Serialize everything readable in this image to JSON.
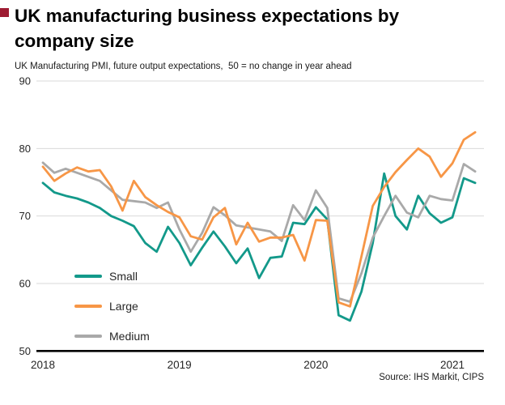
{
  "header": {
    "title": "UK manufacturing business expectations by company size",
    "subtitle": "UK Manufacturing PMI, future output expectations,  50 = no change in year ahead",
    "accent_color": "#9e1b32"
  },
  "source": "Source: IHS Markit, CIPS",
  "legend": {
    "items": [
      {
        "label": "Small",
        "color": "#13998a"
      },
      {
        "label": "Large",
        "color": "#f79646"
      },
      {
        "label": "Medium",
        "color": "#a9a9a9"
      }
    ]
  },
  "chart_data": {
    "type": "line",
    "title": "UK manufacturing business expectations by company size",
    "subtitle": "UK Manufacturing PMI, future output expectations, 50 = no change in year ahead",
    "x": [
      "2018-01",
      "2018-02",
      "2018-03",
      "2018-04",
      "2018-05",
      "2018-06",
      "2018-07",
      "2018-08",
      "2018-09",
      "2018-10",
      "2018-11",
      "2018-12",
      "2019-01",
      "2019-02",
      "2019-03",
      "2019-04",
      "2019-05",
      "2019-06",
      "2019-07",
      "2019-08",
      "2019-09",
      "2019-10",
      "2019-11",
      "2019-12",
      "2020-01",
      "2020-02",
      "2020-03",
      "2020-04",
      "2020-05",
      "2020-06",
      "2020-07",
      "2020-08",
      "2020-09",
      "2020-10",
      "2020-11",
      "2020-12",
      "2021-01",
      "2021-02",
      "2021-03"
    ],
    "x_tick_labels": [
      "2018",
      "2019",
      "2020",
      "2021"
    ],
    "x_tick_indices": [
      0,
      12,
      24,
      36
    ],
    "y_ticks": [
      90,
      80,
      70,
      60,
      50
    ],
    "ylim": [
      50,
      90
    ],
    "grid": "horizontal",
    "legend_position": "inside-left",
    "series": [
      {
        "name": "Small",
        "color": "#13998a",
        "values": [
          74.9,
          73.5,
          73.0,
          72.6,
          72.0,
          71.2,
          70.0,
          69.3,
          68.5,
          66.0,
          64.7,
          68.4,
          66.0,
          62.7,
          65.3,
          67.7,
          65.5,
          63.0,
          65.2,
          60.8,
          63.8,
          64.0,
          69.0,
          68.8,
          71.3,
          69.5,
          55.3,
          54.5,
          58.8,
          66.0,
          76.3,
          70.0,
          68.0,
          73.0,
          70.4,
          69.0,
          69.8,
          75.6,
          74.9
        ]
      },
      {
        "name": "Medium",
        "color": "#a9a9a9",
        "values": [
          77.9,
          76.4,
          77.0,
          76.4,
          75.8,
          75.2,
          73.8,
          72.4,
          72.2,
          72.0,
          71.2,
          72.0,
          68.0,
          64.7,
          67.5,
          71.3,
          70.1,
          68.6,
          68.3,
          68.0,
          67.7,
          66.3,
          71.6,
          69.4,
          73.8,
          71.2,
          57.8,
          57.3,
          61.5,
          66.8,
          70.0,
          73.0,
          70.5,
          69.8,
          73.0,
          72.5,
          72.3,
          77.7,
          76.6
        ]
      },
      {
        "name": "Large",
        "color": "#f79646",
        "values": [
          77.3,
          75.2,
          76.3,
          77.2,
          76.6,
          76.8,
          74.4,
          70.8,
          75.2,
          72.8,
          71.6,
          70.6,
          69.8,
          67.0,
          66.5,
          69.8,
          71.2,
          65.8,
          69.0,
          66.2,
          66.8,
          66.8,
          67.2,
          63.4,
          69.4,
          69.3,
          57.2,
          56.6,
          64.0,
          71.5,
          74.3,
          76.5,
          78.3,
          80.0,
          78.8,
          75.8,
          77.8,
          81.3,
          82.4
        ]
      }
    ]
  },
  "layout_hints": {
    "grid_color": "#d9d9d9",
    "axis_color": "#000000",
    "tick_label_color": "#262626"
  }
}
